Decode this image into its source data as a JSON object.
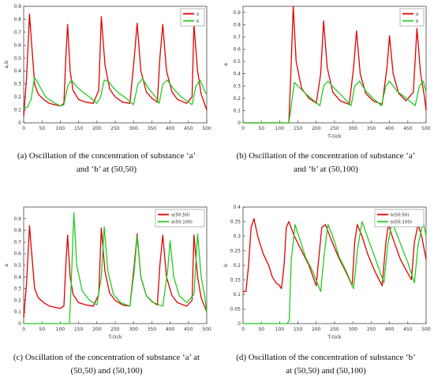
{
  "chart_data": [
    {
      "type": "line",
      "ylabel": "a,b",
      "xlabel": "",
      "xlim": [
        0,
        500
      ],
      "ylim": [
        0,
        0.9
      ],
      "xticks": [
        0,
        50,
        100,
        150,
        200,
        250,
        300,
        350,
        400,
        450,
        500
      ],
      "yticks": [
        0,
        0.1,
        0.2,
        0.3,
        0.4,
        0.5,
        0.6,
        0.7,
        0.8,
        0.9
      ],
      "legend_position": "top-right",
      "series": [
        {
          "name": "a",
          "color": "#e00000",
          "x": [
            0,
            8,
            16,
            22,
            30,
            40,
            55,
            70,
            85,
            100,
            110,
            115,
            120,
            127,
            135,
            150,
            170,
            190,
            205,
            212,
            222,
            235,
            250,
            270,
            290,
            302,
            310,
            320,
            335,
            350,
            365,
            372,
            380,
            390,
            405,
            420,
            445,
            460,
            465,
            475,
            485,
            500
          ],
          "y": [
            0.05,
            0.35,
            0.84,
            0.6,
            0.3,
            0.22,
            0.18,
            0.15,
            0.14,
            0.13,
            0.15,
            0.5,
            0.76,
            0.4,
            0.25,
            0.18,
            0.16,
            0.15,
            0.25,
            0.82,
            0.45,
            0.26,
            0.2,
            0.16,
            0.15,
            0.5,
            0.77,
            0.4,
            0.24,
            0.19,
            0.16,
            0.5,
            0.76,
            0.4,
            0.24,
            0.18,
            0.15,
            0.2,
            0.76,
            0.4,
            0.22,
            0.1
          ]
        },
        {
          "name": "b",
          "color": "#22cc22",
          "x": [
            0,
            10,
            20,
            30,
            40,
            50,
            60,
            80,
            100,
            110,
            120,
            130,
            145,
            160,
            180,
            200,
            210,
            220,
            232,
            245,
            260,
            280,
            300,
            312,
            325,
            340,
            360,
            370,
            380,
            392,
            410,
            430,
            460,
            470,
            482,
            495,
            500
          ],
          "y": [
            0.11,
            0.12,
            0.18,
            0.35,
            0.3,
            0.25,
            0.2,
            0.16,
            0.13,
            0.14,
            0.28,
            0.33,
            0.28,
            0.24,
            0.2,
            0.15,
            0.2,
            0.33,
            0.32,
            0.27,
            0.23,
            0.19,
            0.14,
            0.3,
            0.34,
            0.27,
            0.2,
            0.15,
            0.3,
            0.33,
            0.26,
            0.2,
            0.14,
            0.28,
            0.33,
            0.24,
            0.22
          ]
        }
      ]
    },
    {
      "type": "line",
      "ylabel": "a",
      "xlabel": "T-tick",
      "xlim": [
        0,
        500
      ],
      "ylim": [
        0,
        0.95
      ],
      "xticks": [
        0,
        50,
        100,
        150,
        200,
        250,
        300,
        350,
        400,
        450,
        500
      ],
      "yticks": [
        0,
        0.1,
        0.2,
        0.3,
        0.4,
        0.5,
        0.6,
        0.7,
        0.8,
        0.9
      ],
      "legend_position": "top-right",
      "series": [
        {
          "name": "a",
          "color": "#e00000",
          "x": [
            0,
            125,
            130,
            137,
            145,
            160,
            180,
            200,
            212,
            220,
            230,
            245,
            265,
            290,
            302,
            310,
            320,
            335,
            355,
            380,
            393,
            400,
            410,
            425,
            445,
            465,
            475,
            485,
            495,
            500
          ],
          "y": [
            0,
            0,
            0.35,
            0.95,
            0.5,
            0.28,
            0.2,
            0.16,
            0.4,
            0.83,
            0.45,
            0.25,
            0.18,
            0.15,
            0.45,
            0.75,
            0.4,
            0.24,
            0.18,
            0.15,
            0.45,
            0.71,
            0.4,
            0.24,
            0.18,
            0.25,
            0.77,
            0.4,
            0.22,
            0.1
          ]
        },
        {
          "name": "b",
          "color": "#22cc22",
          "x": [
            0,
            125,
            130,
            140,
            150,
            170,
            190,
            210,
            220,
            232,
            250,
            270,
            295,
            305,
            318,
            335,
            355,
            378,
            390,
            400,
            420,
            450,
            470,
            482,
            492,
            500
          ],
          "y": [
            0,
            0,
            0.1,
            0.33,
            0.3,
            0.24,
            0.19,
            0.14,
            0.3,
            0.34,
            0.28,
            0.22,
            0.14,
            0.3,
            0.34,
            0.26,
            0.2,
            0.14,
            0.3,
            0.34,
            0.26,
            0.19,
            0.14,
            0.3,
            0.34,
            0.25
          ]
        }
      ]
    },
    {
      "type": "line",
      "ylabel": "a",
      "xlabel": "T-tick",
      "xlim": [
        0,
        500
      ],
      "ylim": [
        0,
        1.0
      ],
      "xticks": [
        0,
        50,
        100,
        150,
        200,
        250,
        300,
        350,
        400,
        450,
        500
      ],
      "yticks": [
        0,
        0.1,
        0.2,
        0.3,
        0.4,
        0.5,
        0.6,
        0.7,
        0.8,
        0.9
      ],
      "legend_position": "top-right",
      "series": [
        {
          "name": "a(50,50)",
          "color": "#e00000",
          "x": [
            0,
            8,
            16,
            22,
            30,
            40,
            55,
            70,
            85,
            100,
            110,
            115,
            120,
            127,
            135,
            150,
            170,
            190,
            205,
            212,
            222,
            235,
            250,
            270,
            290,
            302,
            310,
            320,
            335,
            350,
            365,
            372,
            380,
            390,
            405,
            420,
            445,
            460,
            465,
            475,
            485,
            500
          ],
          "y": [
            0.05,
            0.35,
            0.84,
            0.6,
            0.3,
            0.22,
            0.18,
            0.15,
            0.14,
            0.13,
            0.15,
            0.5,
            0.76,
            0.4,
            0.25,
            0.18,
            0.16,
            0.15,
            0.25,
            0.82,
            0.45,
            0.26,
            0.2,
            0.16,
            0.15,
            0.5,
            0.77,
            0.4,
            0.24,
            0.19,
            0.16,
            0.5,
            0.76,
            0.4,
            0.24,
            0.18,
            0.15,
            0.2,
            0.76,
            0.4,
            0.22,
            0.1
          ]
        },
        {
          "name": "a(50,100)",
          "color": "#22cc22",
          "x": [
            0,
            125,
            130,
            137,
            145,
            160,
            180,
            200,
            212,
            220,
            230,
            245,
            265,
            290,
            302,
            310,
            320,
            335,
            355,
            380,
            393,
            400,
            410,
            425,
            445,
            465,
            475,
            485,
            495,
            500
          ],
          "y": [
            0,
            0,
            0.35,
            0.95,
            0.5,
            0.28,
            0.2,
            0.16,
            0.4,
            0.83,
            0.45,
            0.25,
            0.18,
            0.15,
            0.45,
            0.75,
            0.4,
            0.24,
            0.18,
            0.15,
            0.45,
            0.71,
            0.4,
            0.24,
            0.18,
            0.25,
            0.77,
            0.4,
            0.22,
            0.1
          ]
        }
      ]
    },
    {
      "type": "line",
      "ylabel": "b",
      "xlabel": "T-tick",
      "xlim": [
        0,
        500
      ],
      "ylim": [
        0,
        0.4
      ],
      "xticks": [
        0,
        50,
        100,
        150,
        200,
        250,
        300,
        350,
        400,
        450,
        500
      ],
      "yticks": [
        0,
        0.05,
        0.1,
        0.15,
        0.2,
        0.25,
        0.3,
        0.35,
        0.4
      ],
      "legend_position": "top-right",
      "series": [
        {
          "name": "b(50,50)",
          "color": "#e00000",
          "x": [
            0,
            8,
            15,
            22,
            30,
            40,
            55,
            70,
            80,
            90,
            100,
            105,
            112,
            118,
            125,
            140,
            160,
            180,
            200,
            205,
            215,
            225,
            240,
            260,
            280,
            298,
            305,
            312,
            325,
            340,
            360,
            380,
            390,
            397,
            410,
            430,
            460,
            468,
            478,
            488,
            500
          ],
          "y": [
            0.11,
            0.11,
            0.2,
            0.33,
            0.36,
            0.3,
            0.24,
            0.2,
            0.16,
            0.14,
            0.13,
            0.12,
            0.2,
            0.33,
            0.35,
            0.3,
            0.25,
            0.2,
            0.13,
            0.2,
            0.33,
            0.34,
            0.29,
            0.23,
            0.18,
            0.13,
            0.28,
            0.34,
            0.3,
            0.24,
            0.18,
            0.13,
            0.28,
            0.34,
            0.29,
            0.22,
            0.15,
            0.28,
            0.34,
            0.3,
            0.22
          ]
        },
        {
          "name": "b(50,100)",
          "color": "#22cc22",
          "x": [
            0,
            120,
            126,
            132,
            142,
            155,
            170,
            190,
            212,
            222,
            232,
            245,
            262,
            282,
            302,
            312,
            325,
            342,
            362,
            385,
            395,
            407,
            425,
            450,
            468,
            478,
            492,
            500
          ],
          "y": [
            0,
            0,
            0.01,
            0.22,
            0.34,
            0.29,
            0.23,
            0.18,
            0.11,
            0.24,
            0.34,
            0.3,
            0.23,
            0.18,
            0.12,
            0.25,
            0.35,
            0.29,
            0.22,
            0.14,
            0.27,
            0.35,
            0.29,
            0.21,
            0.14,
            0.27,
            0.35,
            0.3
          ]
        }
      ]
    }
  ],
  "captions": {
    "a_line1": "(a) Oscillation of the concentration of substance ‘a’",
    "a_line2": "and ‘b’ at (50,50)",
    "b_line1": "(b) Oscillation of the concentration of substance ‘a’",
    "b_line2": "and ‘b’ at (50,100)",
    "c_line1": "(c) Oscillation of the concentration of substance ‘a’ at",
    "c_line2": "(50,50) and (50,100)",
    "d_line1": "(d) Oscillation of the concentration of substance ‘b’",
    "d_line2": "at (50,50) and (50,100)"
  }
}
